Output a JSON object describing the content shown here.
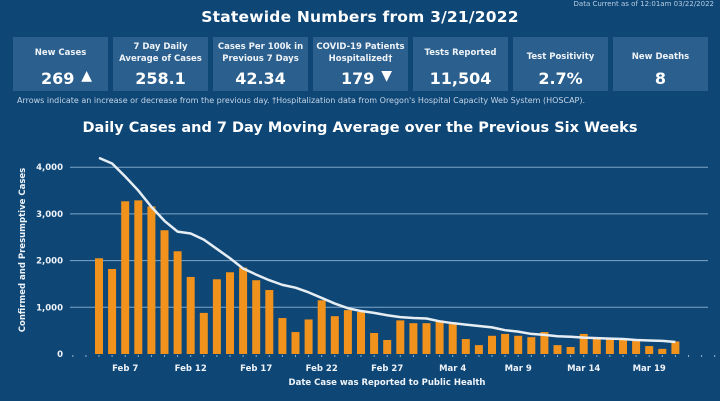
{
  "header": {
    "data_current": "Data Current as of 12:01am 03/22/2022",
    "title": "Statewide Numbers from 3/21/2022"
  },
  "cards": [
    {
      "label": "New Cases",
      "value": "269",
      "arrow": "▲",
      "arrow_icon": "up-triangle-icon"
    },
    {
      "label": "7 Day Daily Average of Cases",
      "value": "258.1"
    },
    {
      "label": "Cases Per 100k in Previous 7 Days",
      "value": "42.34"
    },
    {
      "label": "COVID-19 Patients Hospitalized†",
      "value": "179",
      "arrow": "▼",
      "arrow_icon": "down-triangle-icon"
    },
    {
      "label": "Tests Reported",
      "value": "11,504"
    },
    {
      "label": "Test Positivity",
      "value": "2.7%"
    },
    {
      "label": "New Deaths",
      "value": "8"
    }
  ],
  "note": "Arrows indicate an increase or decrease from the previous day. †Hospitalization data from Oregon's Hospital Capacity Web System (HOSCAP).",
  "colors": {
    "background": "#0e4676",
    "card": "#2b5f8e",
    "bar": "#f0921c",
    "line": "#e6eef4",
    "grid": "#7fa6c9"
  },
  "chart_data": {
    "type": "bar",
    "title": "Daily Cases and 7 Day Moving Average over the Previous Six Weeks",
    "xlabel": "Date Case was Reported to Public Health",
    "ylabel": "Confirmed and Presumptive Cases",
    "ylim": [
      0,
      4300
    ],
    "yticks": [
      0,
      1000,
      2000,
      3000,
      4000
    ],
    "ytick_labels": [
      "0",
      "1,000",
      "2,000",
      "3,000",
      "4,000"
    ],
    "grid": true,
    "categories": [
      "Feb 5",
      "Feb 6",
      "Feb 7",
      "Feb 8",
      "Feb 9",
      "Feb 10",
      "Feb 11",
      "Feb 12",
      "Feb 13",
      "Feb 14",
      "Feb 15",
      "Feb 16",
      "Feb 17",
      "Feb 18",
      "Feb 19",
      "Feb 20",
      "Feb 21",
      "Feb 22",
      "Feb 23",
      "Feb 24",
      "Feb 25",
      "Feb 26",
      "Feb 27",
      "Feb 28",
      "Mar 1",
      "Mar 2",
      "Mar 3",
      "Mar 4",
      "Mar 5",
      "Mar 6",
      "Mar 7",
      "Mar 8",
      "Mar 9",
      "Mar 10",
      "Mar 11",
      "Mar 12",
      "Mar 13",
      "Mar 14",
      "Mar 15",
      "Mar 16",
      "Mar 17",
      "Mar 18",
      "Mar 19",
      "Mar 20",
      "Mar 21"
    ],
    "xtick_labels": [
      "Feb 7",
      "Feb 12",
      "Feb 17",
      "Feb 22",
      "Feb 27",
      "Mar 4",
      "Mar 9",
      "Mar 14",
      "Mar 19"
    ],
    "series": [
      {
        "name": "Daily Cases",
        "type": "bar",
        "values": [
          2050,
          1820,
          3270,
          3290,
          3160,
          2650,
          2200,
          1650,
          880,
          1600,
          1750,
          1850,
          1580,
          1370,
          770,
          470,
          740,
          1150,
          810,
          940,
          900,
          450,
          300,
          720,
          660,
          660,
          720,
          640,
          320,
          190,
          390,
          430,
          390,
          360,
          470,
          190,
          150,
          430,
          340,
          340,
          300,
          300,
          170,
          110,
          269
        ]
      },
      {
        "name": "7 Day Moving Average",
        "type": "line",
        "values": [
          4200,
          4080,
          3800,
          3500,
          3150,
          2850,
          2620,
          2580,
          2450,
          2250,
          2050,
          1830,
          1700,
          1580,
          1480,
          1420,
          1320,
          1200,
          1080,
          980,
          920,
          880,
          830,
          790,
          770,
          760,
          700,
          660,
          630,
          600,
          570,
          510,
          480,
          430,
          410,
          380,
          370,
          350,
          340,
          330,
          320,
          300,
          290,
          280,
          258
        ]
      }
    ]
  }
}
